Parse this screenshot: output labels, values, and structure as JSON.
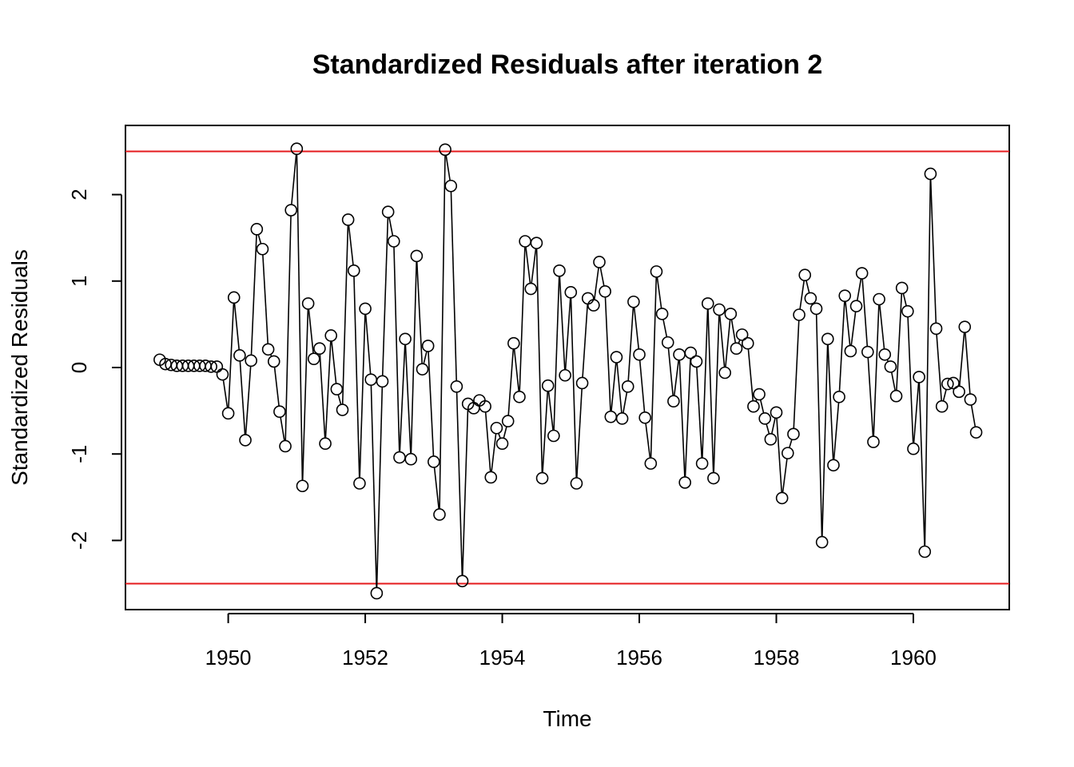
{
  "chart_data": {
    "type": "line",
    "title": "Standardized Residuals after iteration  2",
    "xlabel": "Time",
    "ylabel": "Standardized Residuals",
    "x_start": 1949.0,
    "x_step": 0.08333333,
    "xlim": [
      1948.5,
      1961.4
    ],
    "ylim": [
      -2.8,
      2.8
    ],
    "x_ticks": [
      1950,
      1952,
      1954,
      1956,
      1958,
      1960
    ],
    "y_ticks": [
      -2,
      -1,
      0,
      1,
      2
    ],
    "grid": false,
    "markers": "open-circle",
    "line_color": "#000000",
    "reference_lines": [
      {
        "y": 2.5,
        "color": "#e41a1c"
      },
      {
        "y": -2.5,
        "color": "#e41a1c"
      }
    ],
    "series": [
      {
        "values": [
          0.09,
          0.04,
          0.03,
          0.02,
          0.02,
          0.02,
          0.02,
          0.02,
          0.02,
          0.01,
          0.01,
          -0.08,
          -0.53,
          0.81,
          0.14,
          -0.84,
          0.08,
          1.6,
          1.37,
          0.21,
          0.07,
          -0.51,
          -0.91,
          1.82,
          2.53,
          -1.37,
          0.74,
          0.1,
          0.22,
          -0.88,
          0.37,
          -0.25,
          -0.49,
          1.71,
          1.12,
          -1.34,
          0.68,
          -0.14,
          -2.61,
          -0.16,
          1.8,
          1.46,
          -1.04,
          0.33,
          -1.06,
          1.29,
          -0.02,
          0.25,
          -1.09,
          -1.7,
          2.52,
          2.1,
          -0.22,
          -2.47,
          -0.42,
          -0.47,
          -0.38,
          -0.45,
          -1.27,
          -0.7,
          -0.88,
          -0.62,
          0.28,
          -0.34,
          1.46,
          0.91,
          1.44,
          -1.28,
          -0.21,
          -0.79,
          1.12,
          -0.09,
          0.87,
          -1.34,
          -0.18,
          0.8,
          0.72,
          1.22,
          0.88,
          -0.57,
          0.12,
          -0.59,
          -0.22,
          0.76,
          0.15,
          -0.58,
          -1.11,
          1.11,
          0.62,
          0.29,
          -0.39,
          0.15,
          -1.33,
          0.17,
          0.07,
          -1.11,
          0.74,
          -1.28,
          0.67,
          -0.06,
          0.62,
          0.22,
          0.38,
          0.28,
          -0.45,
          -0.31,
          -0.59,
          -0.83,
          -0.52,
          -1.51,
          -0.99,
          -0.77,
          0.61,
          1.07,
          0.8,
          0.68,
          -2.02,
          0.33,
          -1.13,
          -0.34,
          0.83,
          0.19,
          0.71,
          1.09,
          0.18,
          -0.86,
          0.79,
          0.15,
          0.01,
          -0.33,
          0.92,
          0.65,
          -0.94,
          -0.11,
          -2.13,
          2.24,
          0.45,
          -0.45,
          -0.19,
          -0.18,
          -0.28,
          0.47,
          -0.37,
          -0.75
        ]
      }
    ]
  }
}
